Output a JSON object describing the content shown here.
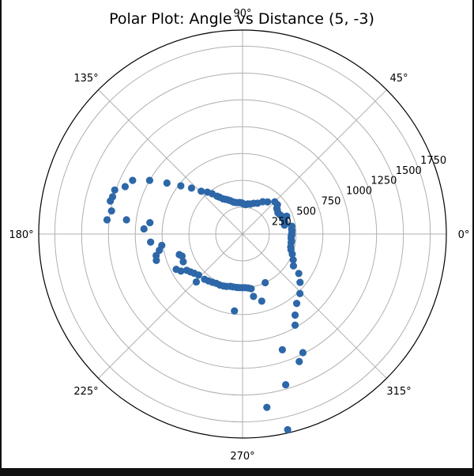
{
  "chart_data": {
    "type": "scatter",
    "projection": "polar",
    "title": "Polar Plot: Angle vs Distance (5, -3)",
    "angle_unit": "degrees",
    "angle_ticks": [
      {
        "angle": 0,
        "label": "0°"
      },
      {
        "angle": 45,
        "label": "45°"
      },
      {
        "angle": 90,
        "label": "90°"
      },
      {
        "angle": 135,
        "label": "135°"
      },
      {
        "angle": 180,
        "label": "180°"
      },
      {
        "angle": 225,
        "label": "225°"
      },
      {
        "angle": 270,
        "label": "270°"
      },
      {
        "angle": 315,
        "label": "315°"
      }
    ],
    "radial_ticks": [
      {
        "value": 250,
        "label": "250"
      },
      {
        "value": 500,
        "label": "500"
      },
      {
        "value": 750,
        "label": "750"
      },
      {
        "value": 1000,
        "label": "1000"
      },
      {
        "value": 1250,
        "label": "1250"
      },
      {
        "value": 1500,
        "label": "1500"
      },
      {
        "value": 1750,
        "label": "1750"
      }
    ],
    "rlim": [
      0,
      1900
    ],
    "radial_label_angle": 22.5,
    "grid": true,
    "colors": {
      "marker": "#2d67a8",
      "grid": "#b0b0b0",
      "axis": "#000000"
    },
    "points": [
      [
        22,
        444
      ],
      [
        280,
        590
      ],
      [
        278,
        1630
      ],
      [
        283,
        1870
      ],
      [
        286,
        1460
      ],
      [
        289,
        1140
      ],
      [
        294,
        1300
      ],
      [
        297,
        1240
      ],
      [
        300,
        980
      ],
      [
        303,
        900
      ],
      [
        308,
        820
      ],
      [
        314,
        770
      ],
      [
        320,
        700
      ],
      [
        325,
        640
      ],
      [
        328,
        560
      ],
      [
        333,
        530
      ],
      [
        338,
        500
      ],
      [
        342,
        475
      ],
      [
        345,
        465
      ],
      [
        350,
        460
      ],
      [
        352,
        462
      ],
      [
        355,
        455
      ],
      [
        358,
        455
      ],
      [
        359,
        460
      ],
      [
        1,
        460
      ],
      [
        4,
        462
      ],
      [
        6,
        460
      ],
      [
        9,
        465
      ],
      [
        12,
        400
      ],
      [
        14,
        410
      ],
      [
        16,
        410
      ],
      [
        19,
        410
      ],
      [
        22,
        410
      ],
      [
        25,
        400
      ],
      [
        28,
        390
      ],
      [
        31,
        385
      ],
      [
        35,
        395
      ],
      [
        37,
        400
      ],
      [
        40,
        425
      ],
      [
        45,
        425
      ],
      [
        52,
        380
      ],
      [
        58,
        355
      ],
      [
        64,
        320
      ],
      [
        70,
        305
      ],
      [
        75,
        290
      ],
      [
        80,
        285
      ],
      [
        84,
        275
      ],
      [
        88,
        280
      ],
      [
        91,
        290
      ],
      [
        95,
        295
      ],
      [
        98,
        295
      ],
      [
        102,
        300
      ],
      [
        106,
        310
      ],
      [
        110,
        330
      ],
      [
        113,
        345
      ],
      [
        116,
        360
      ],
      [
        119,
        375
      ],
      [
        122,
        405
      ],
      [
        124,
        425
      ],
      [
        127,
        470
      ],
      [
        130,
        510
      ],
      [
        134,
        555
      ],
      [
        138,
        640
      ],
      [
        142,
        730
      ],
      [
        146,
        850
      ],
      [
        150,
        1000
      ],
      [
        154,
        1140
      ],
      [
        158,
        1180
      ],
      [
        161,
        1260
      ],
      [
        164,
        1260
      ],
      [
        166,
        1270
      ],
      [
        170,
        1240
      ],
      [
        174,
        1270
      ],
      [
        173,
        1090
      ],
      [
        177,
        920
      ],
      [
        173,
        870
      ],
      [
        185,
        860
      ],
      [
        188,
        760
      ],
      [
        191,
        790
      ],
      [
        194,
        830
      ],
      [
        197,
        840
      ],
      [
        198,
        620
      ],
      [
        200,
        600
      ],
      [
        205,
        610
      ],
      [
        208,
        700
      ],
      [
        211,
        670
      ],
      [
        213,
        620
      ],
      [
        216,
        600
      ],
      [
        219,
        580
      ],
      [
        223,
        560
      ],
      [
        226,
        620
      ],
      [
        230,
        550
      ],
      [
        234,
        540
      ],
      [
        238,
        530
      ],
      [
        242,
        520
      ],
      [
        246,
        520
      ],
      [
        250,
        515
      ],
      [
        253,
        510
      ],
      [
        257,
        500
      ],
      [
        260,
        500
      ],
      [
        264,
        500
      ],
      [
        267,
        500
      ],
      [
        270,
        500
      ],
      [
        273,
        500
      ],
      [
        276,
        505
      ],
      [
        279,
        515
      ],
      [
        286,
        650
      ],
      [
        295,
        500
      ],
      [
        264,
        720
      ]
    ]
  }
}
